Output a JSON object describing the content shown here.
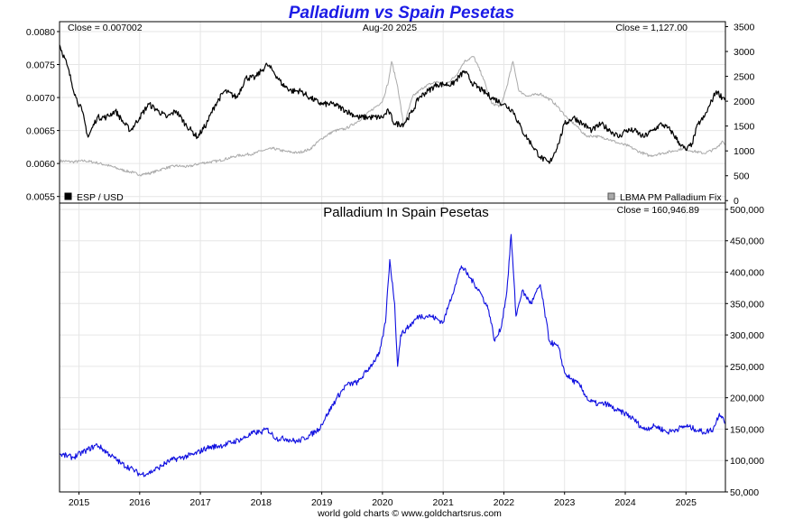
{
  "chart_data": {
    "type": "line",
    "title": "Palladium vs Spain Pesetas",
    "date_label": "Aug-20  2025",
    "footer": "world gold charts © www.goldchartsrus.com",
    "x_ticks": [
      "2015",
      "2016",
      "2017",
      "2018",
      "2019",
      "2020",
      "2021",
      "2022",
      "2023",
      "2024",
      "2025"
    ],
    "xlim": [
      2014.68,
      2025.65
    ],
    "top_panel": {
      "left_close": "Close = 0.007002",
      "right_close": "Close = 1,127.00",
      "left_axis": {
        "ylim": [
          0.0054,
          0.00815
        ],
        "ticks": [
          "0.0080",
          "0.0075",
          "0.0070",
          "0.0065",
          "0.0060",
          "0.0055"
        ],
        "tick_values": [
          0.008,
          0.0075,
          0.007,
          0.0065,
          0.006,
          0.0055
        ]
      },
      "right_axis": {
        "ylim": [
          -50,
          3600
        ],
        "ticks": [
          "3500",
          "3000",
          "2500",
          "2000",
          "1500",
          "1000",
          "500",
          "0"
        ],
        "tick_values": [
          3500,
          3000,
          2500,
          2000,
          1500,
          1000,
          500,
          0
        ]
      },
      "series": [
        {
          "name": "ESP / USD",
          "axis": "left",
          "color": "#000000",
          "x": [
            2014.68,
            2014.8,
            2014.95,
            2015.05,
            2015.15,
            2015.3,
            2015.45,
            2015.6,
            2015.75,
            2015.85,
            2016.0,
            2016.15,
            2016.3,
            2016.45,
            2016.6,
            2016.75,
            2016.85,
            2016.95,
            2017.1,
            2017.25,
            2017.4,
            2017.6,
            2017.75,
            2017.9,
            2018.0,
            2018.1,
            2018.2,
            2018.35,
            2018.5,
            2018.65,
            2018.8,
            2019.0,
            2019.2,
            2019.4,
            2019.6,
            2019.8,
            2020.0,
            2020.1,
            2020.2,
            2020.35,
            2020.5,
            2020.6,
            2020.75,
            2020.9,
            2021.0,
            2021.15,
            2021.35,
            2021.5,
            2021.65,
            2021.8,
            2022.0,
            2022.15,
            2022.3,
            2022.45,
            2022.6,
            2022.75,
            2022.9,
            2023.0,
            2023.15,
            2023.3,
            2023.45,
            2023.6,
            2023.75,
            2023.9,
            2024.0,
            2024.15,
            2024.3,
            2024.45,
            2024.6,
            2024.75,
            2024.9,
            2025.0,
            2025.1,
            2025.2,
            2025.3,
            2025.4,
            2025.5,
            2025.6,
            2025.65
          ],
          "values": [
            0.0078,
            0.0075,
            0.007,
            0.0068,
            0.0064,
            0.0067,
            0.0067,
            0.0068,
            0.0066,
            0.0065,
            0.0067,
            0.0069,
            0.0068,
            0.0067,
            0.0068,
            0.0066,
            0.0065,
            0.0064,
            0.0066,
            0.0069,
            0.0071,
            0.007,
            0.0073,
            0.0073,
            0.0074,
            0.0075,
            0.0074,
            0.0072,
            0.0071,
            0.0071,
            0.007,
            0.0069,
            0.0069,
            0.0068,
            0.0067,
            0.0067,
            0.0067,
            0.0068,
            0.0066,
            0.0066,
            0.0068,
            0.007,
            0.0071,
            0.0072,
            0.0072,
            0.0072,
            0.0074,
            0.0072,
            0.0071,
            0.007,
            0.0069,
            0.0068,
            0.0065,
            0.0063,
            0.0061,
            0.006,
            0.0063,
            0.0066,
            0.0067,
            0.0066,
            0.0065,
            0.0066,
            0.0065,
            0.0064,
            0.0065,
            0.0065,
            0.0064,
            0.0065,
            0.0066,
            0.0065,
            0.0063,
            0.0062,
            0.0063,
            0.0066,
            0.0067,
            0.0069,
            0.0071,
            0.007,
            0.007
          ]
        },
        {
          "name": "LBMA PM Palladium Fix",
          "axis": "right",
          "color": "#aaaaaa",
          "x": [
            2014.68,
            2014.9,
            2015.1,
            2015.3,
            2015.5,
            2015.7,
            2015.9,
            2016.0,
            2016.2,
            2016.4,
            2016.6,
            2016.8,
            2017.0,
            2017.3,
            2017.6,
            2017.9,
            2018.0,
            2018.2,
            2018.4,
            2018.6,
            2018.8,
            2019.0,
            2019.2,
            2019.4,
            2019.6,
            2019.8,
            2020.0,
            2020.1,
            2020.15,
            2020.25,
            2020.35,
            2020.5,
            2020.7,
            2020.9,
            2021.0,
            2021.2,
            2021.35,
            2021.5,
            2021.65,
            2021.8,
            2021.95,
            2022.05,
            2022.15,
            2022.25,
            2022.4,
            2022.6,
            2022.8,
            2022.95,
            2023.05,
            2023.2,
            2023.35,
            2023.5,
            2023.7,
            2023.9,
            2024.05,
            2024.2,
            2024.4,
            2024.6,
            2024.8,
            2024.95,
            2025.1,
            2025.3,
            2025.5,
            2025.6,
            2025.65
          ],
          "values": [
            800,
            780,
            800,
            760,
            700,
            620,
            560,
            520,
            560,
            650,
            700,
            680,
            750,
            800,
            900,
            950,
            1000,
            1050,
            990,
            960,
            1030,
            1250,
            1400,
            1450,
            1600,
            1800,
            2000,
            2400,
            2800,
            2300,
            1500,
            2100,
            2300,
            2400,
            2300,
            2500,
            2800,
            2900,
            2500,
            1950,
            1900,
            2300,
            2800,
            2200,
            2100,
            2150,
            2000,
            1800,
            1650,
            1500,
            1300,
            1300,
            1250,
            1150,
            1100,
            1000,
            900,
            950,
            1000,
            1050,
            1000,
            950,
            1050,
            1200,
            1130
          ]
        }
      ]
    },
    "bottom_panel": {
      "subtitle": "Palladium In Spain Pesetas",
      "close": "Close = 160,946.89",
      "right_axis": {
        "ylim": [
          50000,
          510000
        ],
        "ticks": [
          "500,000",
          "450,000",
          "400,000",
          "350,000",
          "300,000",
          "250,000",
          "200,000",
          "150,000",
          "100,000",
          "50,000"
        ],
        "tick_values": [
          500000,
          450000,
          400000,
          350000,
          300000,
          250000,
          200000,
          150000,
          100000,
          50000
        ]
      },
      "series": [
        {
          "name": "Palladium In Spain Pesetas",
          "color": "#1010e0",
          "x": [
            2014.68,
            2014.9,
            2015.1,
            2015.3,
            2015.5,
            2015.7,
            2015.9,
            2016.0,
            2016.15,
            2016.3,
            2016.5,
            2016.7,
            2016.9,
            2017.1,
            2017.4,
            2017.7,
            2017.9,
            2018.0,
            2018.1,
            2018.25,
            2018.4,
            2018.6,
            2018.8,
            2018.95,
            2019.1,
            2019.25,
            2019.4,
            2019.6,
            2019.8,
            2019.95,
            2020.05,
            2020.12,
            2020.2,
            2020.25,
            2020.3,
            2020.4,
            2020.6,
            2020.8,
            2021.0,
            2021.1,
            2021.2,
            2021.3,
            2021.45,
            2021.6,
            2021.75,
            2021.85,
            2021.95,
            2022.05,
            2022.12,
            2022.2,
            2022.3,
            2022.45,
            2022.6,
            2022.75,
            2022.9,
            2023.0,
            2023.1,
            2023.25,
            2023.4,
            2023.55,
            2023.7,
            2023.85,
            2024.0,
            2024.15,
            2024.3,
            2024.5,
            2024.7,
            2024.85,
            2025.0,
            2025.15,
            2025.3,
            2025.45,
            2025.55,
            2025.6,
            2025.65
          ],
          "values": [
            110000,
            105000,
            115000,
            125000,
            110000,
            95000,
            85000,
            78000,
            80000,
            88000,
            100000,
            105000,
            110000,
            120000,
            125000,
            135000,
            145000,
            145000,
            150000,
            135000,
            135000,
            130000,
            140000,
            150000,
            175000,
            200000,
            220000,
            225000,
            250000,
            270000,
            320000,
            420000,
            350000,
            250000,
            300000,
            310000,
            330000,
            330000,
            320000,
            350000,
            380000,
            410000,
            390000,
            370000,
            340000,
            290000,
            310000,
            370000,
            460000,
            330000,
            370000,
            350000,
            380000,
            290000,
            280000,
            240000,
            230000,
            220000,
            195000,
            190000,
            190000,
            180000,
            175000,
            165000,
            150000,
            155000,
            145000,
            150000,
            155000,
            150000,
            145000,
            150000,
            175000,
            170000,
            161000
          ]
        }
      ]
    }
  }
}
